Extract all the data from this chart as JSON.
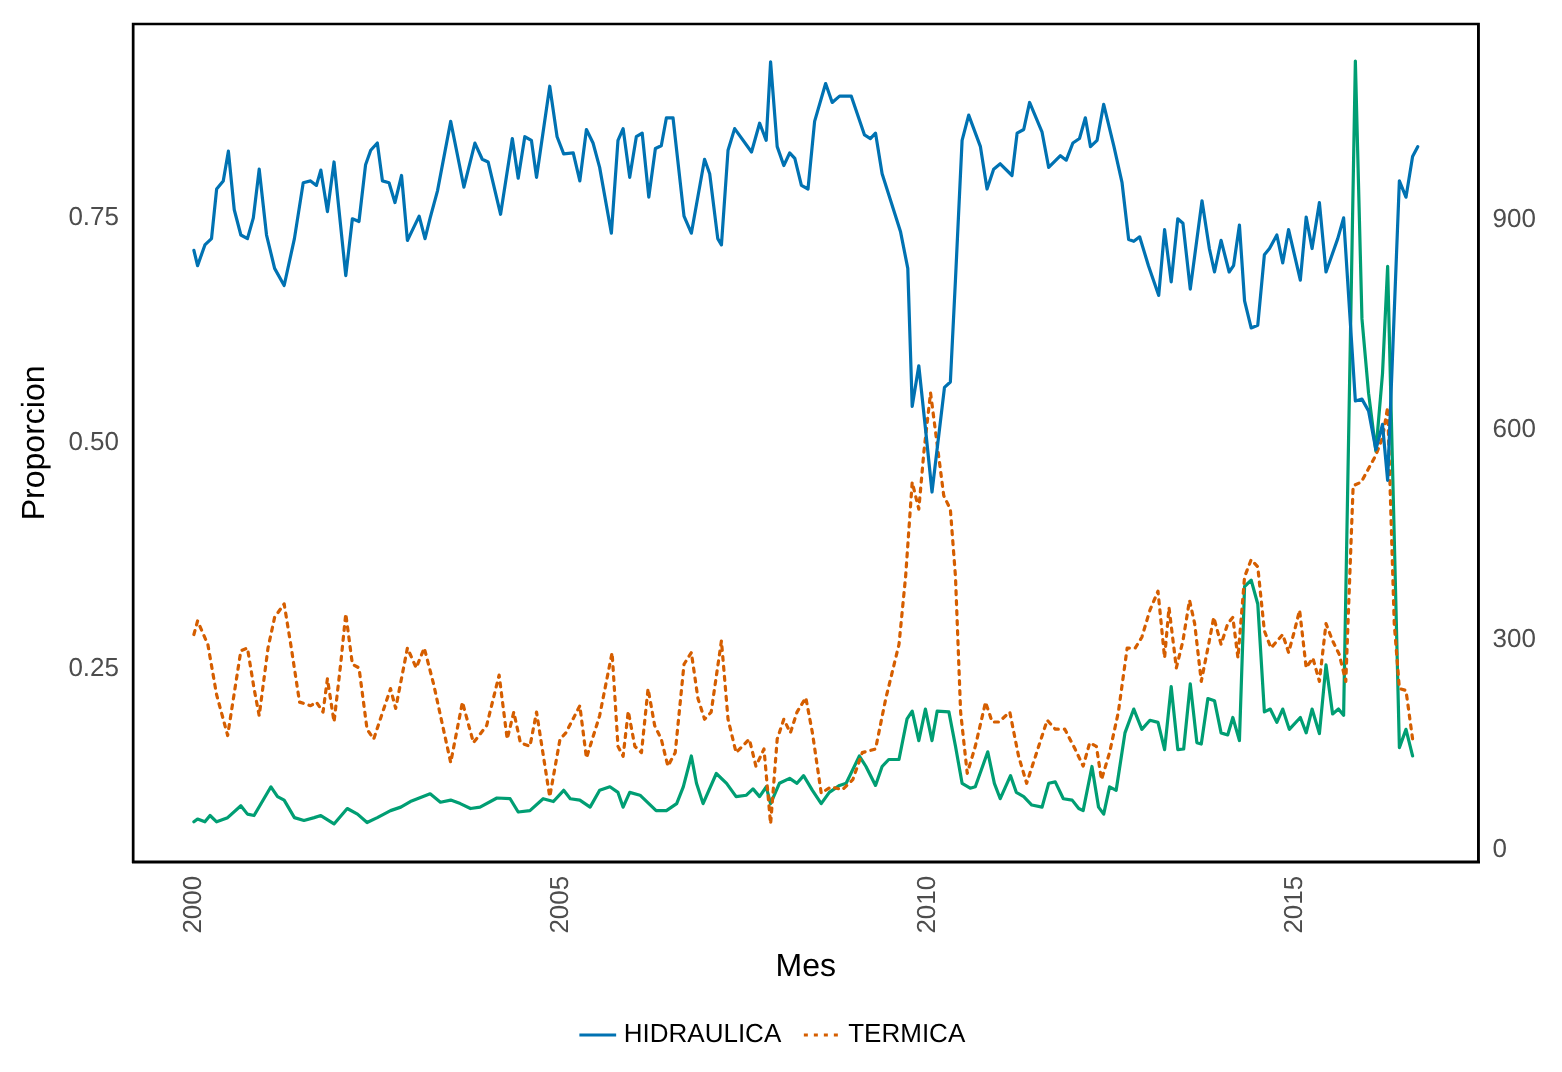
{
  "chart_data": {
    "type": "line",
    "xlabel": "Mes",
    "ylabel": "Proporcion",
    "legend": "bottom",
    "marker": "none",
    "xlim": [
      1999.17,
      2017.51
    ],
    "xticks": [
      2000,
      2005,
      2010,
      2015
    ],
    "ylim": [
      0.036,
      0.965
    ],
    "yticks": [
      {
        "value": 0.25,
        "label": "0.25"
      },
      {
        "value": 0.5,
        "label": "0.50"
      },
      {
        "value": 0.75,
        "label": "0.75"
      }
    ],
    "y2lim": [
      -17,
      1179
    ],
    "y2ticks": [
      0,
      300,
      600,
      900
    ],
    "series": [
      {
        "name": "HIDRAULICA",
        "color": "#0072b2",
        "line_style": "solid",
        "x": [
          2000.0,
          2000.05,
          2000.15,
          2000.24,
          2000.31,
          2000.4,
          2000.47,
          2000.55,
          2000.64,
          2000.73,
          2000.81,
          2000.89,
          2000.99,
          2001.1,
          2001.23,
          2001.37,
          2001.49,
          2001.59,
          2001.67,
          2001.73,
          2001.82,
          2001.91,
          2002.07,
          2002.16,
          2002.25,
          2002.34,
          2002.41,
          2002.5,
          2002.57,
          2002.66,
          2002.74,
          2002.83,
          2002.91,
          2002.97,
          2003.07,
          2003.15,
          2003.22,
          2003.32,
          2003.5,
          2003.68,
          2003.83,
          2003.93,
          2004.01,
          2004.18,
          2004.34,
          2004.42,
          2004.51,
          2004.6,
          2004.67,
          2004.85,
          2004.95,
          2005.04,
          2005.17,
          2005.26,
          2005.35,
          2005.44,
          2005.53,
          2005.69,
          2005.78,
          2005.85,
          2005.94,
          2006.03,
          2006.11,
          2006.2,
          2006.29,
          2006.37,
          2006.44,
          2006.53,
          2006.68,
          2006.78,
          2006.96,
          2007.03,
          2007.14,
          2007.19,
          2007.28,
          2007.37,
          2007.6,
          2007.71,
          2007.8,
          2007.86,
          2007.95,
          2008.04,
          2008.12,
          2008.19,
          2008.28,
          2008.37,
          2008.46,
          2008.61,
          2008.7,
          2008.8,
          2008.96,
          2009.14,
          2009.22,
          2009.29,
          2009.38,
          2009.63,
          2009.73,
          2009.79,
          2009.88,
          2009.97,
          2010.06,
          2010.23,
          2010.31,
          2010.38,
          2010.47,
          2010.56,
          2010.72,
          2010.81,
          2010.9,
          2010.99,
          2011.15,
          2011.22,
          2011.31,
          2011.39,
          2011.56,
          2011.65,
          2011.81,
          2011.89,
          2011.98,
          2012.07,
          2012.15,
          2012.22,
          2012.31,
          2012.4,
          2012.54,
          2012.65,
          2012.74,
          2012.81,
          2012.89,
          2013.01,
          2013.15,
          2013.23,
          2013.32,
          2013.41,
          2013.48,
          2013.58,
          2013.74,
          2013.84,
          2013.91,
          2014.0,
          2014.11,
          2014.17,
          2014.25,
          2014.32,
          2014.41,
          2014.5,
          2014.59,
          2014.66,
          2014.76,
          2014.84,
          2014.92,
          2015.08,
          2015.16,
          2015.24,
          2015.34,
          2015.43,
          2015.59,
          2015.67,
          2015.83,
          2015.92,
          2016.01,
          2016.11,
          2016.2,
          2016.27,
          2016.43,
          2016.52,
          2016.61,
          2016.68
        ],
        "values": [
          0.714,
          0.697,
          0.72,
          0.727,
          0.782,
          0.791,
          0.824,
          0.759,
          0.731,
          0.727,
          0.75,
          0.804,
          0.731,
          0.694,
          0.675,
          0.727,
          0.789,
          0.791,
          0.786,
          0.803,
          0.757,
          0.812,
          0.686,
          0.749,
          0.746,
          0.809,
          0.825,
          0.833,
          0.791,
          0.789,
          0.767,
          0.797,
          0.725,
          0.735,
          0.752,
          0.727,
          0.75,
          0.78,
          0.857,
          0.784,
          0.833,
          0.815,
          0.812,
          0.754,
          0.838,
          0.794,
          0.84,
          0.836,
          0.795,
          0.896,
          0.84,
          0.821,
          0.822,
          0.791,
          0.848,
          0.833,
          0.806,
          0.733,
          0.836,
          0.849,
          0.795,
          0.84,
          0.844,
          0.773,
          0.827,
          0.83,
          0.861,
          0.861,
          0.752,
          0.733,
          0.815,
          0.799,
          0.727,
          0.72,
          0.825,
          0.849,
          0.823,
          0.855,
          0.836,
          0.923,
          0.829,
          0.808,
          0.822,
          0.816,
          0.786,
          0.782,
          0.857,
          0.899,
          0.878,
          0.885,
          0.885,
          0.842,
          0.838,
          0.844,
          0.799,
          0.735,
          0.694,
          0.541,
          0.586,
          0.517,
          0.446,
          0.562,
          0.568,
          0.682,
          0.836,
          0.864,
          0.829,
          0.782,
          0.804,
          0.81,
          0.797,
          0.844,
          0.848,
          0.878,
          0.845,
          0.806,
          0.819,
          0.814,
          0.833,
          0.838,
          0.861,
          0.829,
          0.836,
          0.876,
          0.829,
          0.789,
          0.726,
          0.724,
          0.729,
          0.697,
          0.664,
          0.737,
          0.679,
          0.749,
          0.744,
          0.671,
          0.769,
          0.716,
          0.69,
          0.725,
          0.69,
          0.697,
          0.742,
          0.658,
          0.628,
          0.631,
          0.709,
          0.716,
          0.731,
          0.7,
          0.737,
          0.681,
          0.751,
          0.716,
          0.767,
          0.69,
          0.727,
          0.75,
          0.547,
          0.549,
          0.536,
          0.493,
          0.521,
          0.459,
          0.791,
          0.773,
          0.818,
          0.829
        ]
      },
      {
        "name": "TERMICA",
        "color": "#d55e00",
        "line_style": "dotted",
        "x": [
          2000.0,
          2000.05,
          2000.19,
          2000.31,
          2000.46,
          2000.64,
          2000.73,
          2000.82,
          2000.89,
          2001.01,
          2001.1,
          2001.23,
          2001.32,
          2001.44,
          2001.59,
          2001.67,
          2001.76,
          2001.82,
          2001.91,
          2002.0,
          2002.07,
          2002.16,
          2002.25,
          2002.36,
          2002.45,
          2002.54,
          2002.68,
          2002.75,
          2002.91,
          2003.03,
          2003.14,
          2003.27,
          2003.39,
          2003.5,
          2003.66,
          2003.81,
          2003.99,
          2004.16,
          2004.27,
          2004.36,
          2004.45,
          2004.58,
          2004.67,
          2004.85,
          2004.99,
          2005.07,
          2005.26,
          2005.35,
          2005.53,
          2005.7,
          2005.78,
          2005.85,
          2005.92,
          2006.01,
          2006.1,
          2006.19,
          2006.28,
          2006.37,
          2006.46,
          2006.56,
          2006.68,
          2006.78,
          2006.87,
          2006.96,
          2007.05,
          2007.19,
          2007.28,
          2007.39,
          2007.57,
          2007.66,
          2007.77,
          2007.86,
          2007.95,
          2008.04,
          2008.13,
          2008.22,
          2008.34,
          2008.43,
          2008.55,
          2008.68,
          2008.84,
          2008.98,
          2009.11,
          2009.29,
          2009.43,
          2009.61,
          2009.7,
          2009.79,
          2009.88,
          2009.95,
          2010.04,
          2010.22,
          2010.31,
          2010.38,
          2010.45,
          2010.54,
          2010.65,
          2010.79,
          2010.88,
          2010.97,
          2011.12,
          2011.24,
          2011.35,
          2011.47,
          2011.63,
          2011.74,
          2011.87,
          2012.01,
          2012.12,
          2012.21,
          2012.3,
          2012.37,
          2012.48,
          2012.6,
          2012.72,
          2012.83,
          2012.92,
          2013.03,
          2013.14,
          2013.23,
          2013.29,
          2013.39,
          2013.48,
          2013.57,
          2013.64,
          2013.73,
          2013.83,
          2013.9,
          2014.0,
          2014.09,
          2014.16,
          2014.23,
          2014.32,
          2014.41,
          2014.5,
          2014.59,
          2014.68,
          2014.84,
          2014.92,
          2015.0,
          2015.07,
          2015.16,
          2015.25,
          2015.34,
          2015.43,
          2015.52,
          2015.61,
          2015.7,
          2015.8,
          2015.91,
          2016.01,
          2016.11,
          2016.2,
          2016.27,
          2016.36,
          2016.43,
          2016.52,
          2016.61,
          2016.68
        ],
        "values": [
          0.288,
          0.303,
          0.277,
          0.221,
          0.176,
          0.27,
          0.273,
          0.228,
          0.198,
          0.273,
          0.307,
          0.322,
          0.277,
          0.213,
          0.209,
          0.213,
          0.202,
          0.239,
          0.191,
          0.255,
          0.311,
          0.255,
          0.251,
          0.183,
          0.172,
          0.194,
          0.228,
          0.206,
          0.273,
          0.251,
          0.273,
          0.232,
          0.187,
          0.146,
          0.213,
          0.168,
          0.187,
          0.243,
          0.172,
          0.202,
          0.168,
          0.164,
          0.202,
          0.108,
          0.172,
          0.179,
          0.209,
          0.151,
          0.198,
          0.268,
          0.164,
          0.153,
          0.203,
          0.164,
          0.157,
          0.228,
          0.187,
          0.172,
          0.142,
          0.157,
          0.255,
          0.268,
          0.217,
          0.194,
          0.202,
          0.281,
          0.194,
          0.157,
          0.172,
          0.142,
          0.161,
          0.078,
          0.172,
          0.194,
          0.179,
          0.202,
          0.218,
          0.179,
          0.112,
          0.119,
          0.116,
          0.127,
          0.157,
          0.161,
          0.217,
          0.277,
          0.352,
          0.457,
          0.427,
          0.491,
          0.556,
          0.442,
          0.427,
          0.352,
          0.202,
          0.134,
          0.164,
          0.213,
          0.191,
          0.191,
          0.202,
          0.153,
          0.123,
          0.153,
          0.193,
          0.183,
          0.183,
          0.161,
          0.142,
          0.168,
          0.164,
          0.127,
          0.157,
          0.202,
          0.273,
          0.273,
          0.285,
          0.315,
          0.336,
          0.262,
          0.318,
          0.251,
          0.281,
          0.326,
          0.3,
          0.236,
          0.277,
          0.307,
          0.277,
          0.3,
          0.307,
          0.262,
          0.352,
          0.371,
          0.363,
          0.292,
          0.273,
          0.288,
          0.268,
          0.292,
          0.315,
          0.251,
          0.262,
          0.236,
          0.3,
          0.281,
          0.266,
          0.236,
          0.453,
          0.457,
          0.472,
          0.487,
          0.506,
          0.54,
          0.3,
          0.228,
          0.226,
          0.172,
          0.17
        ]
      },
      {
        "color": "#009e73",
        "line_style": "solid",
        "axis": "y2",
        "x": [
          2000.0,
          2000.05,
          2000.15,
          2000.22,
          2000.31,
          2000.46,
          2000.64,
          2000.73,
          2000.82,
          2001.05,
          2001.14,
          2001.23,
          2001.37,
          2001.5,
          2001.64,
          2001.73,
          2001.91,
          2002.09,
          2002.23,
          2002.36,
          2002.5,
          2002.68,
          2002.82,
          2002.95,
          2003.22,
          2003.36,
          2003.5,
          2003.63,
          2003.77,
          2003.9,
          2004.13,
          2004.31,
          2004.42,
          2004.58,
          2004.76,
          2004.9,
          2005.04,
          2005.13,
          2005.26,
          2005.4,
          2005.53,
          2005.67,
          2005.78,
          2005.85,
          2005.94,
          2006.08,
          2006.3,
          2006.44,
          2006.58,
          2006.67,
          2006.78,
          2006.85,
          2006.94,
          2007.12,
          2007.26,
          2007.39,
          2007.53,
          2007.62,
          2007.71,
          2007.8,
          2007.86,
          2007.98,
          2008.12,
          2008.22,
          2008.31,
          2008.43,
          2008.55,
          2008.66,
          2008.8,
          2008.89,
          2009.07,
          2009.16,
          2009.29,
          2009.38,
          2009.47,
          2009.61,
          2009.72,
          2009.79,
          2009.88,
          2009.97,
          2010.06,
          2010.13,
          2010.29,
          2010.38,
          2010.47,
          2010.58,
          2010.65,
          2010.82,
          2010.91,
          2010.99,
          2011.13,
          2011.21,
          2011.31,
          2011.42,
          2011.56,
          2011.65,
          2011.74,
          2011.85,
          2011.97,
          2012.06,
          2012.12,
          2012.24,
          2012.33,
          2012.4,
          2012.48,
          2012.57,
          2012.69,
          2012.81,
          2012.92,
          2013.03,
          2013.14,
          2013.23,
          2013.32,
          2013.41,
          2013.49,
          2013.58,
          2013.67,
          2013.73,
          2013.82,
          2013.91,
          2014.0,
          2014.09,
          2014.16,
          2014.25,
          2014.32,
          2014.41,
          2014.5,
          2014.59,
          2014.67,
          2014.76,
          2014.84,
          2014.93,
          2015.08,
          2015.16,
          2015.24,
          2015.34,
          2015.43,
          2015.52,
          2015.6,
          2015.67,
          2015.83,
          2015.92,
          2016.01,
          2016.11,
          2016.2,
          2016.27,
          2016.43,
          2016.52,
          2016.61
        ],
        "values": [
          40,
          44,
          40,
          49,
          40,
          46,
          63,
          51,
          49,
          90,
          76,
          71,
          46,
          42,
          46,
          49,
          37,
          59,
          51,
          39,
          46,
          56,
          61,
          69,
          80,
          68,
          71,
          66,
          59,
          61,
          74,
          73,
          54,
          56,
          73,
          69,
          85,
          73,
          71,
          61,
          85,
          90,
          82,
          61,
          82,
          78,
          56,
          56,
          66,
          90,
          134,
          95,
          66,
          109,
          95,
          76,
          78,
          87,
          76,
          90,
          66,
          95,
          102,
          95,
          106,
          85,
          66,
          82,
          92,
          95,
          134,
          119,
          92,
          119,
          129,
          129,
          187,
          198,
          156,
          201,
          156,
          198,
          197,
          148,
          95,
          88,
          90,
          140,
          95,
          73,
          106,
          82,
          76,
          64,
          61,
          95,
          97,
          73,
          71,
          59,
          56,
          119,
          61,
          51,
          90,
          85,
          167,
          201,
          172,
          185,
          182,
          143,
          233,
          143,
          144,
          237,
          153,
          151,
          216,
          213,
          167,
          164,
          189,
          156,
          376,
          385,
          351,
          197,
          201,
          182,
          201,
          172,
          189,
          167,
          201,
          166,
          264,
          194,
          201,
          192,
          1126,
          758,
          652,
          569,
          680,
          833,
          146,
          172,
          134
        ]
      }
    ]
  }
}
